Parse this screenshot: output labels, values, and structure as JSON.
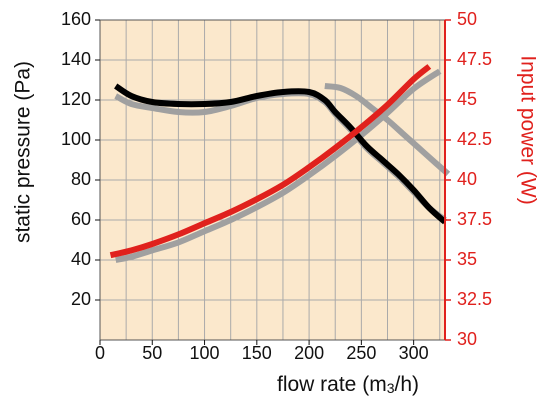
{
  "chart_data": {
    "type": "line",
    "xlabel_prefix": "flow rate (m",
    "xlabel_sub": "3",
    "xlabel_suffix": "/h)",
    "ylabel_left": "static pressure (Pa)",
    "ylabel_right": "Input power (W)",
    "xlim": [
      0,
      330
    ],
    "ylim_left": [
      0,
      160
    ],
    "ylim_right": [
      30,
      50
    ],
    "x_ticks": [
      "0",
      "50",
      "100",
      "150",
      "200",
      "250",
      "300"
    ],
    "x_tick_values": [
      0,
      50,
      100,
      150,
      200,
      250,
      300
    ],
    "y_left_ticks": [
      "20",
      "40",
      "60",
      "80",
      "100",
      "120",
      "140",
      "160"
    ],
    "y_left_tick_values": [
      20,
      40,
      60,
      80,
      100,
      120,
      140,
      160
    ],
    "y_right_ticks": [
      "30",
      "32.5",
      "35",
      "37.5",
      "40",
      "42.5",
      "45",
      "47.5",
      "50"
    ],
    "y_right_tick_values": [
      30,
      32.5,
      35,
      37.5,
      40,
      42.5,
      45,
      47.5,
      50
    ],
    "grid": true,
    "colors": {
      "plot_background": "#fbe8cc",
      "grid": "#aaaaaa",
      "pressure_main": "#000000",
      "power_main": "#e0211d",
      "comparison": "#a0a0a0",
      "right_axis": "#e0211d"
    },
    "series": [
      {
        "axis": "left",
        "color": "#000000",
        "x": [
          15,
          30,
          50,
          75,
          100,
          125,
          150,
          175,
          200,
          215,
          225,
          240,
          255,
          270,
          285,
          300,
          315,
          330
        ],
        "y": [
          127,
          122,
          119,
          118,
          118,
          119,
          122,
          124,
          124,
          120,
          114,
          106,
          97,
          90,
          83,
          75,
          66,
          59
        ]
      },
      {
        "axis": "left",
        "color": "#a0a0a0",
        "x": [
          15,
          30,
          50,
          75,
          100,
          125,
          150,
          175,
          200,
          215,
          225,
          240,
          255,
          270,
          285,
          300,
          315,
          330
        ],
        "y": [
          122,
          118,
          116,
          114,
          114,
          117,
          121,
          123,
          123,
          119,
          113,
          105,
          96,
          89,
          82,
          74,
          66,
          60
        ]
      },
      {
        "axis": "left",
        "color": "#a0a0a0",
        "x": [
          215,
          230,
          245,
          260,
          275,
          290,
          305,
          320,
          333
        ],
        "y": [
          127,
          126,
          122,
          116,
          110,
          103,
          96,
          89,
          83
        ]
      },
      {
        "axis": "right",
        "color": "#e0211d",
        "x": [
          10,
          30,
          50,
          75,
          100,
          125,
          150,
          175,
          200,
          225,
          250,
          275,
          300,
          315
        ],
        "y": [
          35.3,
          35.6,
          36.0,
          36.6,
          37.3,
          38.0,
          38.8,
          39.7,
          40.8,
          42.0,
          43.3,
          44.7,
          46.3,
          47.1
        ]
      },
      {
        "axis": "right",
        "color": "#a0a0a0",
        "x": [
          15,
          30,
          50,
          75,
          100,
          125,
          150,
          175,
          200,
          225,
          250,
          275,
          300,
          325
        ],
        "y": [
          35.0,
          35.2,
          35.6,
          36.1,
          36.8,
          37.5,
          38.3,
          39.2,
          40.3,
          41.5,
          42.8,
          44.2,
          45.7,
          46.8
        ]
      }
    ]
  }
}
